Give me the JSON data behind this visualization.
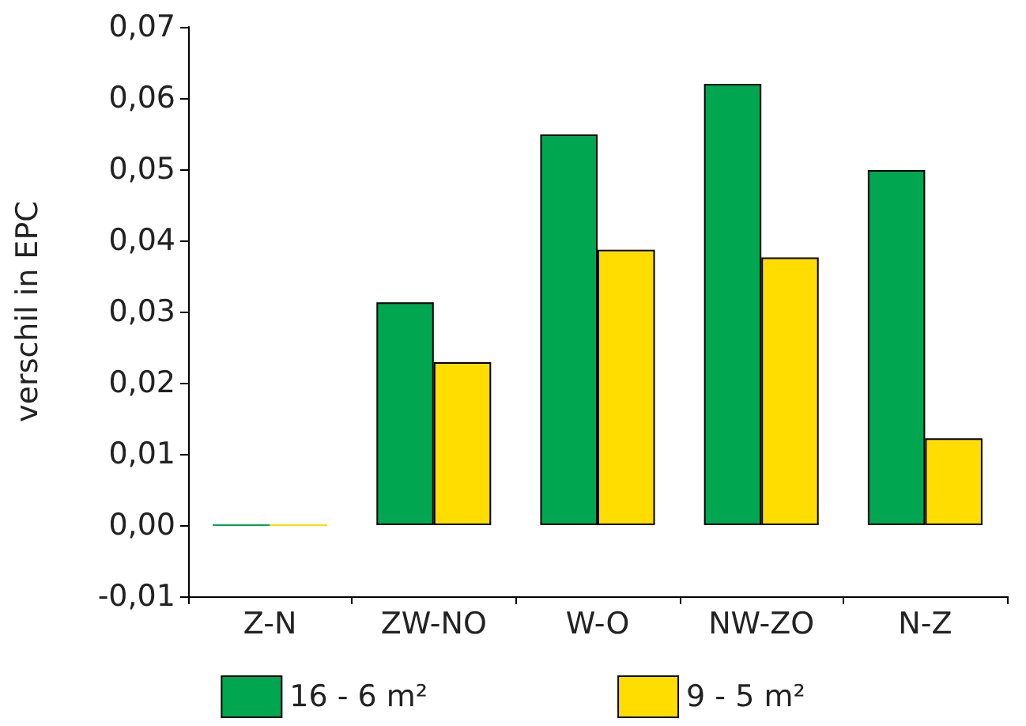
{
  "chart_data": {
    "type": "bar",
    "ylabel": "verschil in EPC",
    "categories": [
      "Z-N",
      "ZW-NO",
      "W-O",
      "NW-ZO",
      "N-Z"
    ],
    "series": [
      {
        "name": "16 - 6 m²",
        "color": "#00a650",
        "values": [
          0,
          0.0313,
          0.0549,
          0.062,
          0.0499
        ]
      },
      {
        "name": "9 - 5 m²",
        "color": "#ffdd00",
        "values": [
          0,
          0.0229,
          0.0387,
          0.0376,
          0.0122
        ]
      }
    ],
    "ylim": [
      -0.01,
      0.07
    ],
    "yticks": [
      {
        "value": -0.01,
        "label": "-0,01"
      },
      {
        "value": 0,
        "label": "0,00"
      },
      {
        "value": 0.01,
        "label": "0,01"
      },
      {
        "value": 0.02,
        "label": "0,02"
      },
      {
        "value": 0.03,
        "label": "0,03"
      },
      {
        "value": 0.04,
        "label": "0,04"
      },
      {
        "value": 0.05,
        "label": "0,05"
      },
      {
        "value": 0.06,
        "label": "0,06"
      },
      {
        "value": 0.07,
        "label": "0,07"
      }
    ],
    "grid": false,
    "legend": "bottom"
  }
}
